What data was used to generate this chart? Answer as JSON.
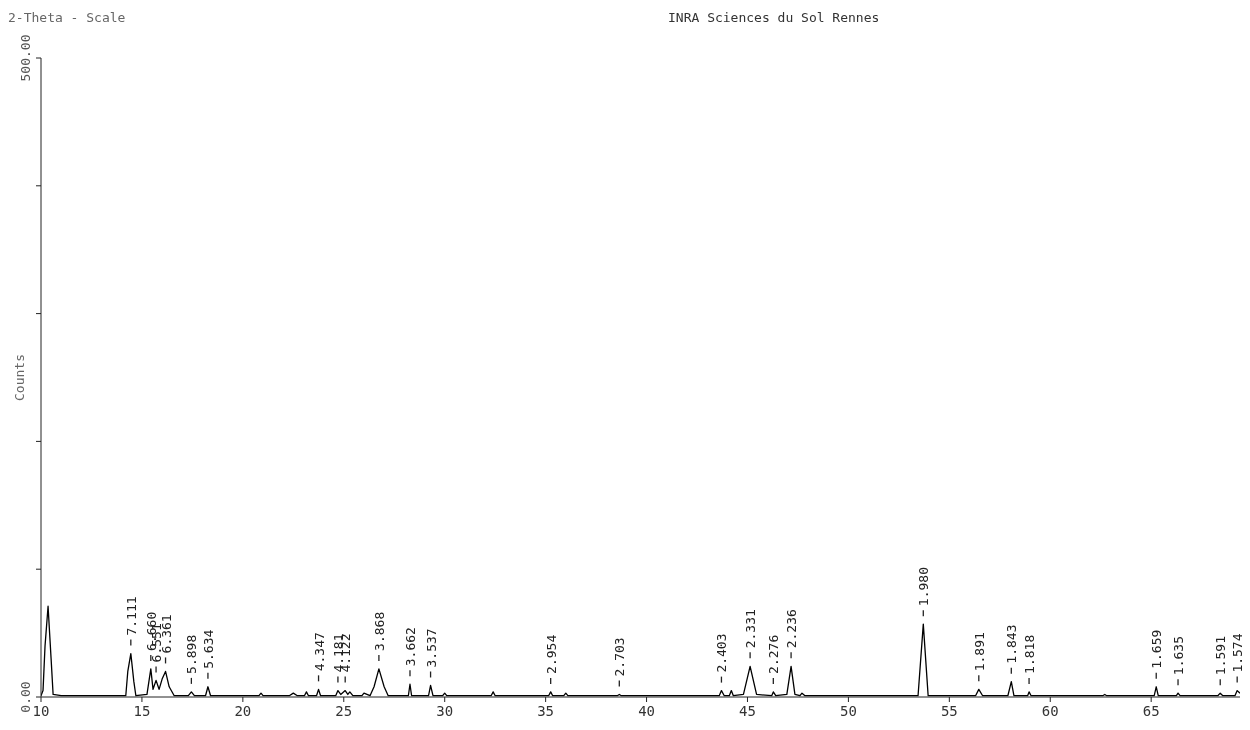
{
  "chart_data": {
    "type": "line",
    "title": "INRA Sciences du Sol Rennes",
    "xlabel": "2-Theta - Scale",
    "ylabel": "Counts",
    "xlim": [
      10,
      69.4
    ],
    "xticks": [
      10,
      15,
      20,
      25,
      30,
      35,
      40,
      45,
      50,
      55,
      60,
      65
    ],
    "ylim": [
      0,
      500
    ],
    "yticks": [
      {
        "value": 0,
        "label": "0.00"
      },
      {
        "value": 100,
        "label": null
      },
      {
        "value": 200,
        "label": null
      },
      {
        "value": 300,
        "label": null
      },
      {
        "value": 400,
        "label": null
      },
      {
        "value": 500,
        "label": "500.00"
      }
    ],
    "grid": false,
    "series": [
      {
        "color": "#000000",
        "x": [
          10,
          10.1,
          10.2,
          10.35,
          10.5,
          10.6,
          11,
          12,
          13,
          14.2,
          14.3,
          14.45,
          14.6,
          14.7,
          15.25,
          15.44,
          15.55,
          15.7,
          15.85,
          16.0,
          16.17,
          16.35,
          16.6,
          17.3,
          17.45,
          17.6,
          18.15,
          18.27,
          18.4,
          20.8,
          20.9,
          21.0,
          22.3,
          22.5,
          22.7,
          23.05,
          23.15,
          23.25,
          23.65,
          23.75,
          23.85,
          24.6,
          24.71,
          24.85,
          25.07,
          25.2,
          25.3,
          25.45,
          25.9,
          26.0,
          26.3,
          26.5,
          26.74,
          27.0,
          27.2,
          28.2,
          28.28,
          28.36,
          29.2,
          29.3,
          29.42,
          29.9,
          30.0,
          30.1,
          32.3,
          32.4,
          32.5,
          35.15,
          35.25,
          35.35,
          35.9,
          36.0,
          36.1,
          38.55,
          38.65,
          38.75,
          43.6,
          43.71,
          43.85,
          44.1,
          44.2,
          44.3,
          44.8,
          45.13,
          45.45,
          46.2,
          46.28,
          46.4,
          46.95,
          47.16,
          47.35,
          47.6,
          47.7,
          47.85,
          53.45,
          53.71,
          53.95,
          56.3,
          56.46,
          56.65,
          57.9,
          58.07,
          58.2,
          58.88,
          58.95,
          59.05,
          62.6,
          62.7,
          62.8,
          65.15,
          65.25,
          65.35,
          66.25,
          66.33,
          66.43,
          68.3,
          68.42,
          68.55,
          69.15,
          69.26,
          69.4
        ],
        "values": [
          1,
          5,
          40,
          71,
          30,
          2,
          1,
          1,
          1,
          1,
          20,
          34,
          12,
          1,
          2,
          22,
          6,
          13,
          6,
          14,
          20,
          8,
          1,
          1,
          4,
          1,
          1,
          8,
          1,
          1,
          3,
          1,
          1,
          3,
          1,
          1,
          4,
          1,
          1,
          6,
          1,
          1,
          5,
          2,
          5,
          2,
          4,
          1,
          1,
          3,
          1,
          8,
          22,
          8,
          1,
          1,
          10,
          1,
          1,
          9,
          1,
          1,
          3,
          1,
          1,
          4,
          1,
          1,
          4,
          1,
          1,
          3,
          1,
          1,
          2,
          1,
          1,
          5,
          1,
          1,
          5,
          1,
          2,
          24,
          2,
          1,
          4,
          1,
          2,
          24,
          2,
          1,
          3,
          1,
          1,
          57,
          1,
          1,
          6,
          1,
          1,
          12,
          1,
          1,
          4,
          1,
          1,
          2,
          1,
          1,
          8,
          1,
          1,
          3,
          1,
          1,
          3,
          1,
          1,
          5,
          3
        ]
      }
    ],
    "annotations": [
      {
        "text": "7.111",
        "x": 14.45,
        "y": 34
      },
      {
        "text": "6.660",
        "x": 15.44,
        "y": 22
      },
      {
        "text": "6.551",
        "x": 15.7,
        "y": 13
      },
      {
        "text": "6.361",
        "x": 16.17,
        "y": 20
      },
      {
        "text": "5.898",
        "x": 17.45,
        "y": 4
      },
      {
        "text": "5.634",
        "x": 18.27,
        "y": 8
      },
      {
        "text": "4.347",
        "x": 23.75,
        "y": 6
      },
      {
        "text": "4.181",
        "x": 24.71,
        "y": 5
      },
      {
        "text": "4.122",
        "x": 25.07,
        "y": 5
      },
      {
        "text": "3.868",
        "x": 26.74,
        "y": 22
      },
      {
        "text": "3.662",
        "x": 28.28,
        "y": 10
      },
      {
        "text": "3.537",
        "x": 29.3,
        "y": 9
      },
      {
        "text": "2.954",
        "x": 35.25,
        "y": 4
      },
      {
        "text": "2.703",
        "x": 38.65,
        "y": 2
      },
      {
        "text": "2.403",
        "x": 43.71,
        "y": 5
      },
      {
        "text": "2.331",
        "x": 45.13,
        "y": 24
      },
      {
        "text": "2.276",
        "x": 46.28,
        "y": 4
      },
      {
        "text": "2.236",
        "x": 47.16,
        "y": 24
      },
      {
        "text": "1.980",
        "x": 53.71,
        "y": 57
      },
      {
        "text": "1.891",
        "x": 56.46,
        "y": 6
      },
      {
        "text": "1.843",
        "x": 58.07,
        "y": 12
      },
      {
        "text": "1.818",
        "x": 58.95,
        "y": 4
      },
      {
        "text": "1.659",
        "x": 65.25,
        "y": 8
      },
      {
        "text": "1.635",
        "x": 66.33,
        "y": 3
      },
      {
        "text": "1.591",
        "x": 68.42,
        "y": 3
      },
      {
        "text": "1.574",
        "x": 69.26,
        "y": 5
      }
    ]
  }
}
